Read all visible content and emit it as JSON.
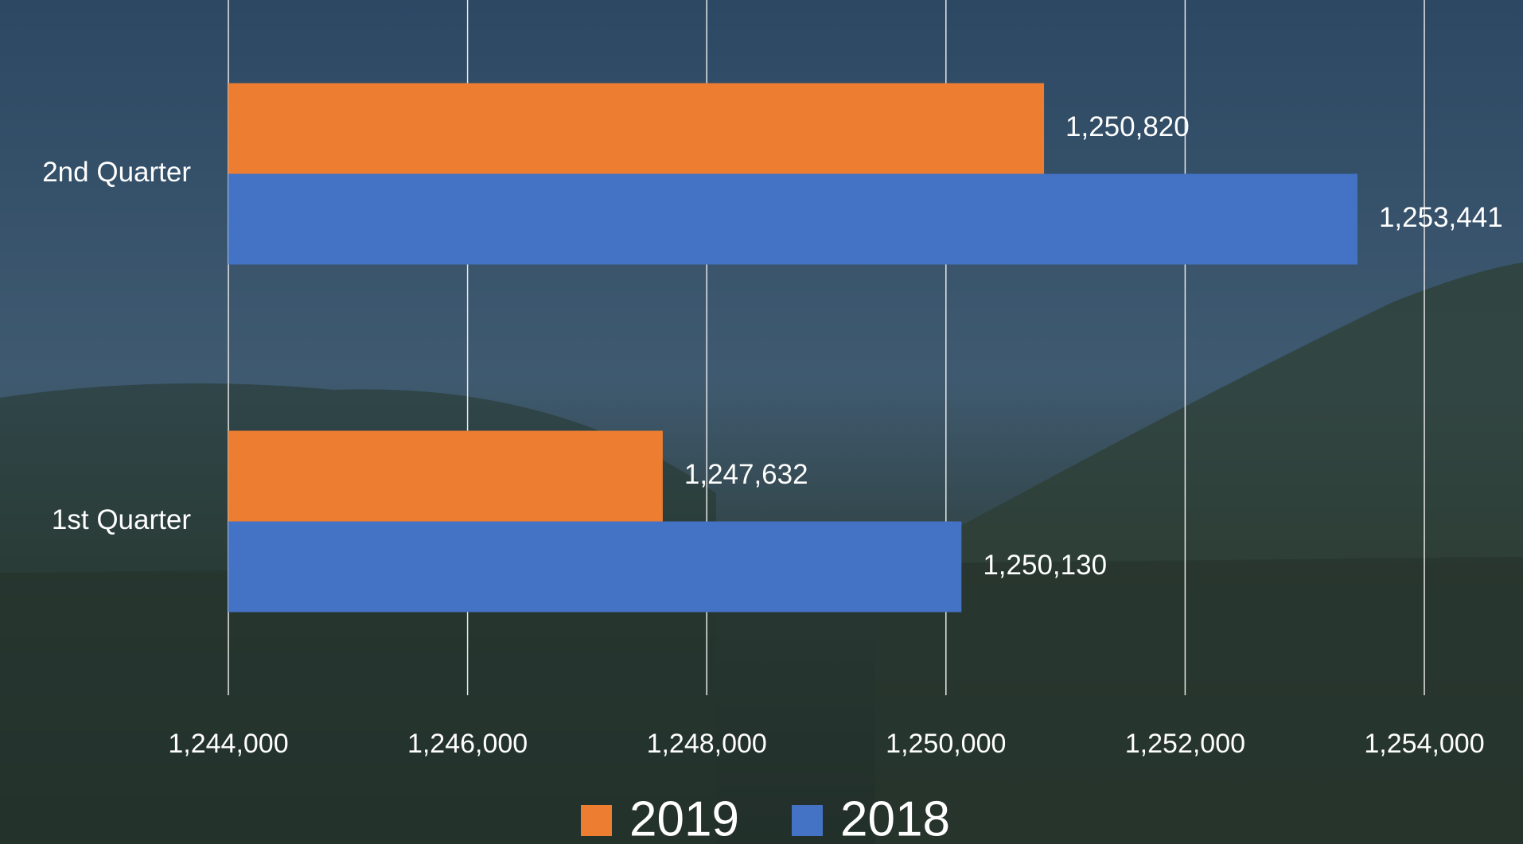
{
  "chart_data": {
    "type": "barh",
    "categories": [
      "1st Quarter",
      "2nd Quarter"
    ],
    "series": [
      {
        "name": "2019",
        "color": "#ed7d31",
        "values": [
          1247632,
          1250820
        ],
        "value_labels": [
          "1,247,632",
          "1,250,820"
        ]
      },
      {
        "name": "2018",
        "color": "#4472c4",
        "values": [
          1250130,
          1253441
        ],
        "value_labels": [
          "1,250,130",
          "1,253,441"
        ]
      }
    ],
    "xlim": [
      1244000,
      1254000
    ],
    "xticks": [
      {
        "value": 1244000,
        "label": "1,244,000"
      },
      {
        "value": 1246000,
        "label": "1,246,000"
      },
      {
        "value": 1248000,
        "label": "1,248,000"
      },
      {
        "value": 1250000,
        "label": "1,250,000"
      },
      {
        "value": 1252000,
        "label": "1,252,000"
      },
      {
        "value": 1254000,
        "label": "1,254,000"
      }
    ],
    "grid": true,
    "legend": "bottom"
  }
}
